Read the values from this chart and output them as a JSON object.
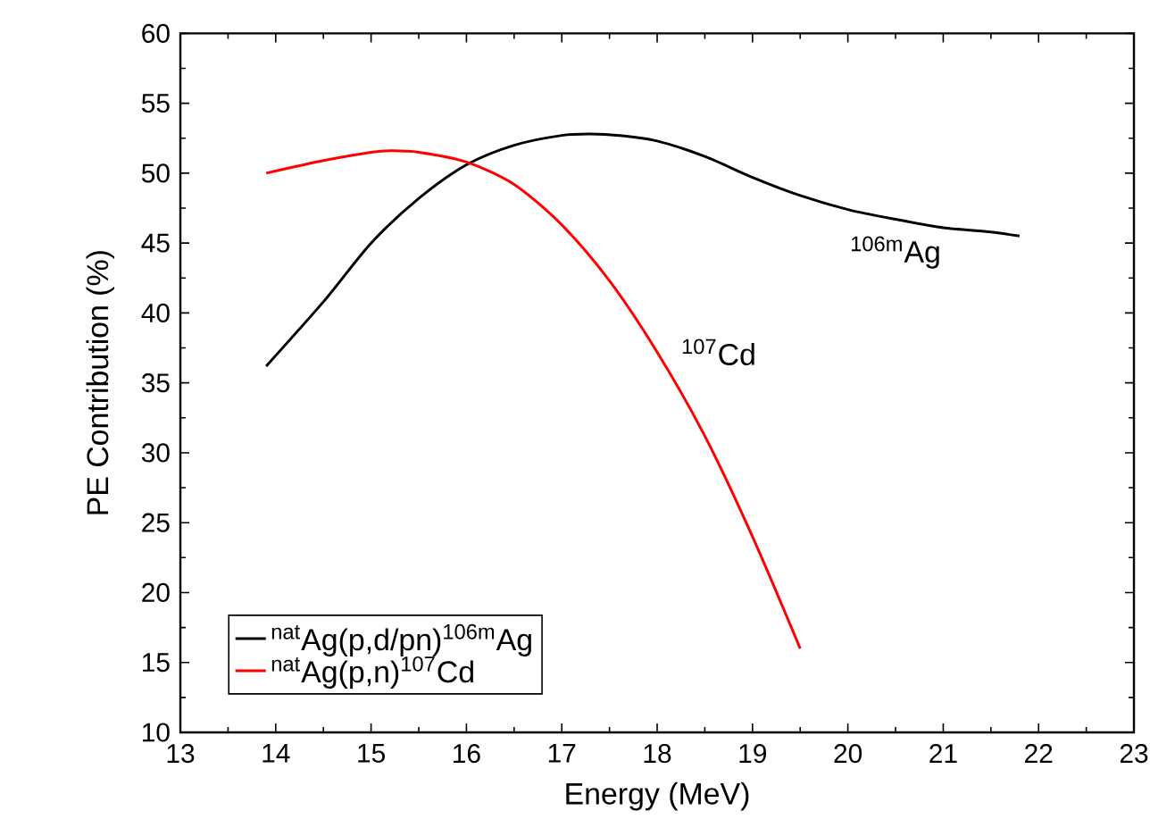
{
  "chart_data": {
    "type": "line",
    "xlabel": "Energy (MeV)",
    "ylabel": "PE Contribution (%)",
    "xlim": [
      13,
      23
    ],
    "ylim": [
      10,
      60
    ],
    "xticks": [
      13,
      14,
      15,
      16,
      17,
      18,
      19,
      20,
      21,
      22,
      23
    ],
    "yticks": [
      10,
      15,
      20,
      25,
      30,
      35,
      40,
      45,
      50,
      55,
      60
    ],
    "grid": false,
    "legend": "bottom left",
    "marker": "none",
    "line_style": "solid",
    "series": [
      {
        "name": "$^{nat}$Ag(p,d/pn)$^{106m}$Ag",
        "color": "#000000",
        "x": [
          13.9,
          14.5,
          15,
          15.5,
          16,
          16.5,
          17,
          17.3,
          17.6,
          18,
          18.5,
          19,
          19.5,
          20,
          20.5,
          21,
          21.5,
          21.8
        ],
        "values": [
          36.2,
          40.8,
          45.0,
          48.2,
          50.6,
          52.0,
          52.7,
          52.8,
          52.7,
          52.3,
          51.2,
          49.7,
          48.4,
          47.4,
          46.7,
          46.1,
          45.8,
          45.5
        ]
      },
      {
        "name": "$^{nat}$Ag(p,n)$^{107}$Cd",
        "color": "#ff0000",
        "x": [
          13.9,
          14.5,
          15,
          15.2,
          15.5,
          16,
          16.5,
          17,
          17.5,
          18,
          18.5,
          19,
          19.5
        ],
        "values": [
          50.0,
          50.9,
          51.5,
          51.6,
          51.5,
          50.8,
          49.2,
          46.3,
          42.3,
          37.2,
          31.2,
          24.0,
          16.0
        ]
      }
    ],
    "annotations": [
      "$^{106m}$Ag",
      "$^{107}$Cd"
    ]
  }
}
